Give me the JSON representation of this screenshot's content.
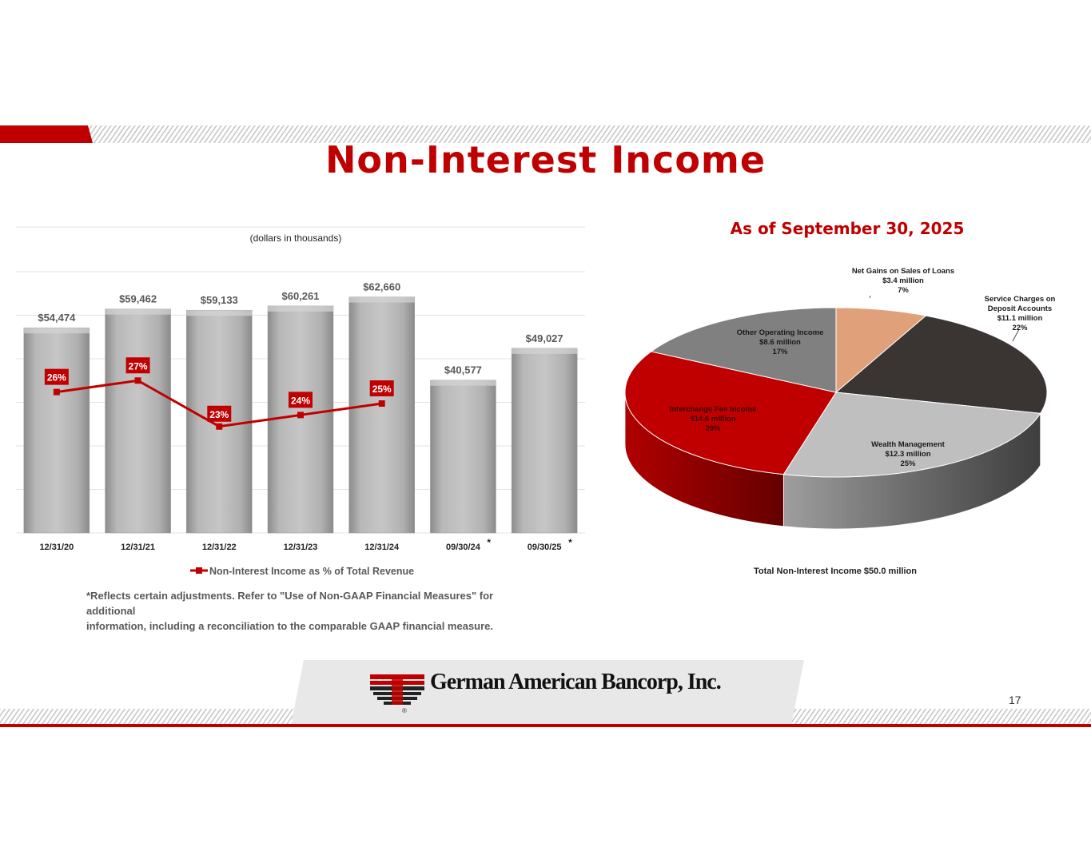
{
  "title": "Non-Interest Income",
  "page_number": "17",
  "company_name": "German American Bancorp, Inc.",
  "bar_units_label": "(dollars in thousands)",
  "footnote": {
    "line1": "*Reflects certain adjustments.  Refer to \"Use of Non-GAAP Financial Measures\" for additional",
    "line2": "information, including a reconciliation to the comparable GAAP financial measure."
  },
  "pie_heading": "As of September 30, 2025",
  "pie_total_label": "Total  Non-Interest  Income $50.0 million",
  "colors": {
    "brand_red": "#c00000",
    "bar_gray": "#a6a6a6",
    "line_red": "#c00000"
  },
  "chart_data": [
    {
      "type": "bar",
      "categories": [
        "12/31/20",
        "12/31/21",
        "12/31/22",
        "12/31/23",
        "12/31/24",
        "09/30/24",
        "09/30/25"
      ],
      "category_marks": [
        "",
        "",
        "",
        "",
        "",
        "*",
        "*"
      ],
      "series": [
        {
          "values": [
            54474,
            59462,
            59133,
            60261,
            62660,
            40577,
            49027
          ],
          "value_labels": [
            "$54,474",
            "$59,462",
            "$59,133",
            "$60,261",
            "$62,660",
            "$40,577",
            "$49,027"
          ]
        },
        {
          "name": "Non-Interest Income as % of Total Revenue",
          "type": "line",
          "values": [
            26,
            27,
            23,
            24,
            25,
            null,
            null
          ],
          "value_labels": [
            "26%",
            "27%",
            "23%",
            "24%",
            "25%",
            "",
            ""
          ]
        }
      ],
      "legend": "bottom",
      "grid": true
    },
    {
      "type": "pie",
      "slices": [
        {
          "name": "Net Gains on Sales of Loans",
          "amount": "$3.4 million",
          "percent": 7,
          "percent_label": "7%",
          "color": "#e0a07a"
        },
        {
          "name": "Service Charges on Deposit Accounts",
          "amount": "$11.1 million",
          "percent": 22,
          "percent_label": "22%",
          "color": "#3a3533"
        },
        {
          "name": "Wealth Management",
          "amount": "$12.3 million",
          "percent": 25,
          "percent_label": "25%",
          "color": "#bfbfbf"
        },
        {
          "name": "Interchange Fee Income",
          "amount": "$14.6 million",
          "percent": 29,
          "percent_label": "29%",
          "color": "#c00000"
        },
        {
          "name": "Other Operating Income",
          "amount": "$8.6 million",
          "percent": 17,
          "percent_label": "17%",
          "color": "#808080"
        }
      ]
    }
  ]
}
